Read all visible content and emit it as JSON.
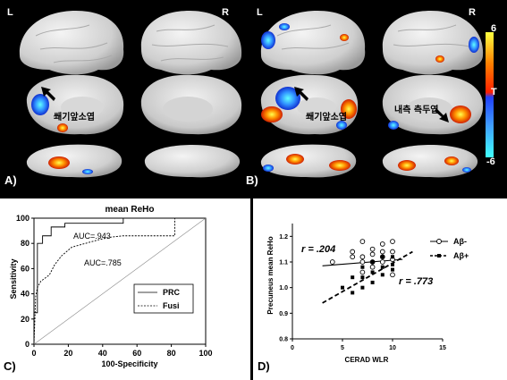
{
  "brains": {
    "hemi_left": "L",
    "hemi_right": "R",
    "annotation_A": "쐐기앞소엽",
    "annotation_B1": "쐐기앞소엽",
    "annotation_B2": "내측 측두엽",
    "panel_A": "A)",
    "panel_B": "B)",
    "colorbar": {
      "top": "6",
      "mid": "T",
      "bottom": "-6",
      "colors": [
        "#ffff40",
        "#ff8000",
        "#ff2000",
        "#2040ff",
        "#40a0ff",
        "#40ffff"
      ]
    }
  },
  "panel_C": {
    "label": "C)",
    "chart_data": {
      "type": "line",
      "title": "mean ReHo",
      "xlabel": "100-Specificity",
      "ylabel": "Sensitivity",
      "xlim": [
        0,
        100
      ],
      "ylim": [
        0,
        100
      ],
      "xticks": [
        "0",
        "20",
        "40",
        "60",
        "80",
        "100"
      ],
      "yticks": [
        "0",
        "20",
        "40",
        "60",
        "80",
        "100"
      ],
      "annotations": [
        "AUC=.943",
        "AUC=.785"
      ],
      "legend": {
        "placement": "bottom-right",
        "entries": [
          "PRC",
          "Fusi"
        ]
      },
      "series": [
        {
          "name": "PRC",
          "style": "solid",
          "x": [
            0,
            0,
            2,
            2,
            5,
            5,
            10,
            10,
            18,
            18,
            52,
            52,
            100
          ],
          "y": [
            0,
            25,
            25,
            80,
            80,
            86,
            86,
            93,
            93,
            96,
            96,
            100,
            100
          ]
        },
        {
          "name": "Fusi",
          "style": "dashed",
          "x": [
            0,
            1,
            2,
            4,
            6,
            9,
            12,
            16,
            22,
            30,
            38,
            45,
            52,
            62,
            72,
            82,
            82,
            100
          ],
          "y": [
            0,
            38,
            45,
            50,
            52,
            55,
            63,
            70,
            77,
            80,
            83,
            85,
            86,
            86,
            86,
            86,
            100,
            100
          ]
        },
        {
          "name": "",
          "style": "diagonal",
          "x": [
            0,
            100
          ],
          "y": [
            0,
            100
          ]
        }
      ]
    }
  },
  "panel_D": {
    "label": "D)",
    "chart_data": {
      "type": "scatter",
      "xlabel": "CERAD WLR",
      "ylabel": "Precuneus mean ReHo",
      "xlim": [
        0,
        15
      ],
      "ylim": [
        0.8,
        1.25
      ],
      "xticks": [
        "0",
        "5",
        "10",
        "15"
      ],
      "yticks": [
        "0.8",
        "0.9",
        "1.0",
        "1.1",
        "1.2"
      ],
      "annotations": [
        "r = .204",
        "r = .773"
      ],
      "legend": {
        "placement": "top-right",
        "entries": [
          "Aβ-",
          "Aβ+"
        ]
      },
      "series": [
        {
          "name": "Aβ-",
          "marker": "circle",
          "line": "solid",
          "points": [
            [
              4,
              1.1
            ],
            [
              6,
              1.14
            ],
            [
              6,
              1.12
            ],
            [
              7,
              1.18
            ],
            [
              7,
              1.12
            ],
            [
              7,
              1.1
            ],
            [
              8,
              1.15
            ],
            [
              8,
              1.13
            ],
            [
              8,
              1.1
            ],
            [
              8,
              1.08
            ],
            [
              9,
              1.17
            ],
            [
              9,
              1.14
            ],
            [
              9,
              1.12
            ],
            [
              9,
              1.1
            ],
            [
              10,
              1.18
            ],
            [
              10,
              1.14
            ],
            [
              10,
              1.11
            ],
            [
              10,
              1.05
            ],
            [
              7,
              1.06
            ]
          ],
          "fit": [
            [
              3,
              1.085
            ],
            [
              11,
              1.11
            ]
          ]
        },
        {
          "name": "Aβ+",
          "marker": "square",
          "line": "dashed",
          "points": [
            [
              5,
              1.0
            ],
            [
              6,
              0.98
            ],
            [
              6,
              1.04
            ],
            [
              7,
              1.0
            ],
            [
              7,
              1.04
            ],
            [
              7,
              1.08
            ],
            [
              8,
              1.02
            ],
            [
              8,
              1.06
            ],
            [
              8,
              1.1
            ],
            [
              9,
              1.05
            ],
            [
              9,
              1.08
            ],
            [
              9,
              1.12
            ],
            [
              10,
              1.09
            ],
            [
              10,
              1.12
            ],
            [
              10,
              1.07
            ]
          ],
          "fit": [
            [
              3,
              0.94
            ],
            [
              12,
              1.14
            ]
          ]
        }
      ]
    }
  }
}
